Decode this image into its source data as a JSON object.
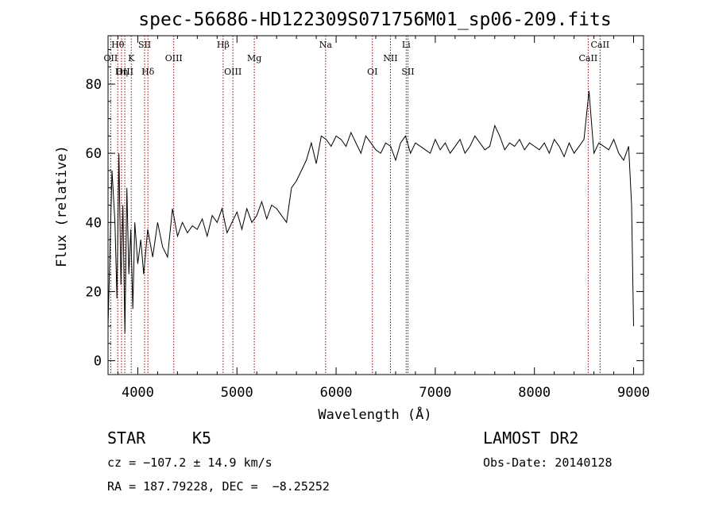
{
  "info": {
    "object_class": "STAR",
    "subclass": "K5",
    "survey": "LAMOST DR2",
    "cz": "cz = −107.2 ± 14.9 km/s",
    "obs_date": "Obs-Date: 20140128",
    "coords": "RA = 187.79228, DEC =  −8.25252"
  },
  "chart_data": {
    "type": "line",
    "title": "spec-56686-HD122309S071756M01_sp06-209.fits",
    "xlabel": "Wavelength (Å)",
    "ylabel": "Flux (relative)",
    "xlim": [
      3700,
      9100
    ],
    "ylim": [
      -4,
      94
    ],
    "x_ticks": [
      4000,
      5000,
      6000,
      7000,
      8000,
      9000
    ],
    "y_ticks": [
      0,
      20,
      40,
      60,
      80
    ],
    "grid": false,
    "line_color": "#000000",
    "marker_color": "#8b0000",
    "line_markers": [
      {
        "label": "Hθ",
        "wavelength": 3798,
        "row": 0
      },
      {
        "label": "OII",
        "wavelength": 3727,
        "row": 1
      },
      {
        "label": "OIII",
        "wavelength": 3869,
        "row": 2
      },
      {
        "label": "Hη",
        "wavelength": 3836,
        "row": 2
      },
      {
        "label": "K",
        "wavelength": 3934,
        "row": 1
      },
      {
        "label": "SII",
        "wavelength": 4069,
        "row": 0
      },
      {
        "label": "Hδ",
        "wavelength": 4102,
        "row": 2
      },
      {
        "label": "OIII",
        "wavelength": 4363,
        "row": 1
      },
      {
        "label": "Hβ",
        "wavelength": 4861,
        "row": 0
      },
      {
        "label": "OIII",
        "wavelength": 4959,
        "row": 2
      },
      {
        "label": "Mg",
        "wavelength": 5175,
        "row": 1
      },
      {
        "label": "Na",
        "wavelength": 5894,
        "row": 0
      },
      {
        "label": "OI",
        "wavelength": 6366,
        "row": 2
      },
      {
        "label": "NII",
        "wavelength": 6548,
        "row": 1
      },
      {
        "label": "Li",
        "wavelength": 6707,
        "row": 0
      },
      {
        "label": "SII",
        "wavelength": 6724,
        "row": 2
      },
      {
        "label": "CaII",
        "wavelength": 8542,
        "row": 1
      },
      {
        "label": "CaII",
        "wavelength": 8662,
        "row": 0
      }
    ],
    "series": [
      {
        "x": [
          3700,
          3740,
          3770,
          3790,
          3810,
          3830,
          3850,
          3870,
          3890,
          3910,
          3930,
          3950,
          3970,
          4000,
          4030,
          4060,
          4100,
          4150,
          4200,
          4250,
          4300,
          4350,
          4400,
          4450,
          4500,
          4550,
          4600,
          4650,
          4700,
          4750,
          4800,
          4850,
          4900,
          4950,
          5000,
          5050,
          5100,
          5150,
          5200,
          5250,
          5300,
          5350,
          5400,
          5450,
          5500,
          5550,
          5600,
          5650,
          5700,
          5750,
          5800,
          5850,
          5900,
          5950,
          6000,
          6050,
          6100,
          6150,
          6200,
          6250,
          6300,
          6350,
          6400,
          6450,
          6500,
          6550,
          6600,
          6650,
          6700,
          6750,
          6800,
          6850,
          6900,
          6950,
          7000,
          7050,
          7100,
          7150,
          7200,
          7250,
          7300,
          7350,
          7400,
          7450,
          7500,
          7550,
          7600,
          7650,
          7700,
          7750,
          7800,
          7850,
          7900,
          7950,
          8000,
          8050,
          8100,
          8150,
          8200,
          8250,
          8300,
          8350,
          8400,
          8450,
          8500,
          8550,
          8600,
          8650,
          8700,
          8750,
          8800,
          8850,
          8900,
          8950,
          8980,
          9000
        ],
        "values": [
          10,
          55,
          40,
          18,
          60,
          22,
          45,
          8,
          50,
          25,
          38,
          15,
          40,
          28,
          35,
          25,
          38,
          30,
          40,
          33,
          30,
          44,
          36,
          40,
          37,
          39,
          38,
          41,
          36,
          42,
          40,
          44,
          37,
          40,
          43,
          38,
          44,
          40,
          42,
          46,
          41,
          45,
          44,
          42,
          40,
          50,
          52,
          55,
          58,
          63,
          57,
          65,
          64,
          62,
          65,
          64,
          62,
          66,
          63,
          60,
          65,
          63,
          61,
          60,
          63,
          62,
          58,
          63,
          65,
          60,
          63,
          62,
          61,
          60,
          64,
          61,
          63,
          60,
          62,
          64,
          60,
          62,
          65,
          63,
          61,
          62,
          68,
          65,
          61,
          63,
          62,
          64,
          61,
          63,
          62,
          61,
          63,
          60,
          64,
          62,
          59,
          63,
          60,
          62,
          64,
          78,
          60,
          63,
          62,
          61,
          64,
          60,
          58,
          62,
          45,
          10
        ]
      }
    ]
  }
}
